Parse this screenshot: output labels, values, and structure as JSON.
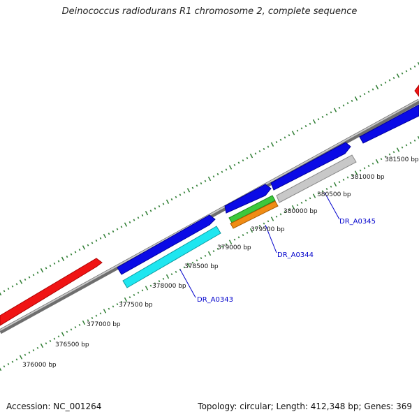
{
  "title": "Deinococcus radiodurans R1 chromosome 2, complete sequence",
  "footer": {
    "accession": "Accession: NC_001264",
    "summary": "Topology: circular; Length: 412,348 bp; Genes: 369"
  },
  "position_labels": [
    "376000 bp",
    "376500 bp",
    "377000 bp",
    "377500 bp",
    "378000 bp",
    "378500 bp",
    "379000 bp",
    "379500 bp",
    "380000 bp",
    "380500 bp",
    "381000 bp",
    "381500 bp"
  ],
  "gene_labels": [
    "DR_A0343",
    "DR_A0344",
    "DR_A0345"
  ],
  "colors": {
    "backbone": "#8c8c8c",
    "blue": "#0a0ae6",
    "red": "#f01414",
    "cyan": "#1ee6f0",
    "green": "#3cc83c",
    "orange": "#f08c14",
    "gray": "#c8c8c8",
    "tick": "#2e7d32",
    "label_line": "#0000cc"
  }
}
